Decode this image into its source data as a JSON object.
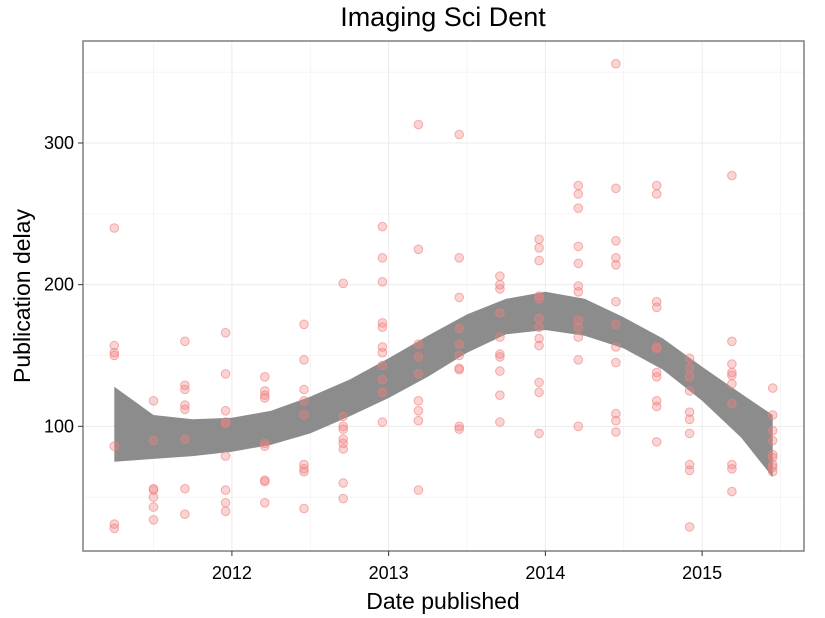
{
  "chart_data": {
    "type": "scatter",
    "title": "Imaging Sci Dent",
    "xlabel": "Date published",
    "ylabel": "Publication delay",
    "x_ticks": [
      "2012",
      "2013",
      "2014",
      "2015"
    ],
    "y_ticks": [
      "100",
      "200",
      "300"
    ],
    "xlim": [
      2011.05,
      2015.65
    ],
    "ylim": [
      12,
      372
    ],
    "grid": true,
    "point_color": "#f08080",
    "smooth_band_color": "#8c8c8c",
    "points": [
      [
        2011.25,
        240
      ],
      [
        2011.25,
        157
      ],
      [
        2011.25,
        152
      ],
      [
        2011.25,
        150
      ],
      [
        2011.25,
        86
      ],
      [
        2011.25,
        31
      ],
      [
        2011.25,
        28
      ],
      [
        2011.5,
        118
      ],
      [
        2011.5,
        90
      ],
      [
        2011.5,
        56
      ],
      [
        2011.5,
        55
      ],
      [
        2011.5,
        50
      ],
      [
        2011.5,
        43
      ],
      [
        2011.5,
        34
      ],
      [
        2011.7,
        160
      ],
      [
        2011.7,
        129
      ],
      [
        2011.7,
        126
      ],
      [
        2011.7,
        115
      ],
      [
        2011.7,
        112
      ],
      [
        2011.7,
        91
      ],
      [
        2011.7,
        56
      ],
      [
        2011.7,
        38
      ],
      [
        2011.96,
        166
      ],
      [
        2011.96,
        137
      ],
      [
        2011.96,
        111
      ],
      [
        2011.96,
        103
      ],
      [
        2011.96,
        102
      ],
      [
        2011.96,
        79
      ],
      [
        2011.96,
        55
      ],
      [
        2011.96,
        46
      ],
      [
        2011.96,
        40
      ],
      [
        2012.21,
        135
      ],
      [
        2012.21,
        125
      ],
      [
        2012.21,
        122
      ],
      [
        2012.21,
        120
      ],
      [
        2012.21,
        88
      ],
      [
        2012.21,
        86
      ],
      [
        2012.21,
        62
      ],
      [
        2012.21,
        61
      ],
      [
        2012.21,
        46
      ],
      [
        2012.46,
        172
      ],
      [
        2012.46,
        147
      ],
      [
        2012.46,
        126
      ],
      [
        2012.46,
        118
      ],
      [
        2012.46,
        108
      ],
      [
        2012.46,
        73
      ],
      [
        2012.46,
        70
      ],
      [
        2012.46,
        68
      ],
      [
        2012.46,
        42
      ],
      [
        2012.71,
        201
      ],
      [
        2012.71,
        107
      ],
      [
        2012.71,
        100
      ],
      [
        2012.71,
        98
      ],
      [
        2012.71,
        91
      ],
      [
        2012.71,
        88
      ],
      [
        2012.71,
        84
      ],
      [
        2012.71,
        60
      ],
      [
        2012.71,
        49
      ],
      [
        2012.96,
        241
      ],
      [
        2012.96,
        219
      ],
      [
        2012.96,
        202
      ],
      [
        2012.96,
        173
      ],
      [
        2012.96,
        170
      ],
      [
        2012.96,
        156
      ],
      [
        2012.96,
        152
      ],
      [
        2012.96,
        143
      ],
      [
        2012.96,
        133
      ],
      [
        2012.96,
        124
      ],
      [
        2012.96,
        103
      ],
      [
        2013.19,
        313
      ],
      [
        2013.19,
        225
      ],
      [
        2013.19,
        158
      ],
      [
        2013.19,
        149
      ],
      [
        2013.19,
        137
      ],
      [
        2013.19,
        118
      ],
      [
        2013.19,
        111
      ],
      [
        2013.19,
        104
      ],
      [
        2013.19,
        55
      ],
      [
        2013.45,
        306
      ],
      [
        2013.45,
        219
      ],
      [
        2013.45,
        191
      ],
      [
        2013.45,
        169
      ],
      [
        2013.45,
        158
      ],
      [
        2013.45,
        150
      ],
      [
        2013.45,
        141
      ],
      [
        2013.45,
        140
      ],
      [
        2013.45,
        100
      ],
      [
        2013.45,
        98
      ],
      [
        2013.71,
        206
      ],
      [
        2013.71,
        200
      ],
      [
        2013.71,
        197
      ],
      [
        2013.71,
        180
      ],
      [
        2013.71,
        163
      ],
      [
        2013.71,
        151
      ],
      [
        2013.71,
        149
      ],
      [
        2013.71,
        139
      ],
      [
        2013.71,
        122
      ],
      [
        2013.71,
        103
      ],
      [
        2013.96,
        232
      ],
      [
        2013.96,
        226
      ],
      [
        2013.96,
        217
      ],
      [
        2013.96,
        192
      ],
      [
        2013.96,
        190
      ],
      [
        2013.96,
        176
      ],
      [
        2013.96,
        170
      ],
      [
        2013.96,
        162
      ],
      [
        2013.96,
        157
      ],
      [
        2013.96,
        131
      ],
      [
        2013.96,
        124
      ],
      [
        2013.96,
        95
      ],
      [
        2014.21,
        270
      ],
      [
        2014.21,
        264
      ],
      [
        2014.21,
        254
      ],
      [
        2014.21,
        227
      ],
      [
        2014.21,
        215
      ],
      [
        2014.21,
        199
      ],
      [
        2014.21,
        195
      ],
      [
        2014.21,
        175
      ],
      [
        2014.21,
        170
      ],
      [
        2014.21,
        163
      ],
      [
        2014.21,
        147
      ],
      [
        2014.21,
        100
      ],
      [
        2014.45,
        356
      ],
      [
        2014.45,
        268
      ],
      [
        2014.45,
        231
      ],
      [
        2014.45,
        219
      ],
      [
        2014.45,
        214
      ],
      [
        2014.45,
        188
      ],
      [
        2014.45,
        172
      ],
      [
        2014.45,
        156
      ],
      [
        2014.45,
        145
      ],
      [
        2014.45,
        109
      ],
      [
        2014.45,
        104
      ],
      [
        2014.45,
        96
      ],
      [
        2014.71,
        270
      ],
      [
        2014.71,
        264
      ],
      [
        2014.71,
        188
      ],
      [
        2014.71,
        184
      ],
      [
        2014.71,
        156
      ],
      [
        2014.71,
        155
      ],
      [
        2014.71,
        138
      ],
      [
        2014.71,
        135
      ],
      [
        2014.71,
        118
      ],
      [
        2014.71,
        114
      ],
      [
        2014.71,
        89
      ],
      [
        2014.92,
        148
      ],
      [
        2014.92,
        141
      ],
      [
        2014.92,
        135
      ],
      [
        2014.92,
        125
      ],
      [
        2014.92,
        110
      ],
      [
        2014.92,
        105
      ],
      [
        2014.92,
        95
      ],
      [
        2014.92,
        73
      ],
      [
        2014.92,
        69
      ],
      [
        2014.92,
        29
      ],
      [
        2015.19,
        277
      ],
      [
        2015.19,
        160
      ],
      [
        2015.19,
        144
      ],
      [
        2015.19,
        138
      ],
      [
        2015.19,
        136
      ],
      [
        2015.19,
        130
      ],
      [
        2015.19,
        116
      ],
      [
        2015.19,
        73
      ],
      [
        2015.19,
        70
      ],
      [
        2015.19,
        54
      ],
      [
        2015.45,
        127
      ],
      [
        2015.45,
        108
      ],
      [
        2015.45,
        97
      ],
      [
        2015.45,
        90
      ],
      [
        2015.45,
        80
      ],
      [
        2015.45,
        78
      ],
      [
        2015.45,
        73
      ],
      [
        2015.45,
        71
      ],
      [
        2015.45,
        68
      ]
    ],
    "smooth_band": {
      "x": [
        2011.25,
        2011.5,
        2011.75,
        2012.0,
        2012.25,
        2012.5,
        2012.75,
        2013.0,
        2013.25,
        2013.5,
        2013.75,
        2014.0,
        2014.25,
        2014.5,
        2014.75,
        2015.0,
        2015.25,
        2015.45
      ],
      "lower": [
        75,
        77,
        79,
        82,
        87,
        95,
        107,
        120,
        135,
        152,
        165,
        168,
        164,
        155,
        140,
        118,
        92,
        64
      ],
      "upper": [
        128,
        108,
        105,
        106,
        111,
        121,
        133,
        148,
        164,
        179,
        190,
        195,
        190,
        177,
        162,
        142,
        123,
        108
      ]
    }
  }
}
